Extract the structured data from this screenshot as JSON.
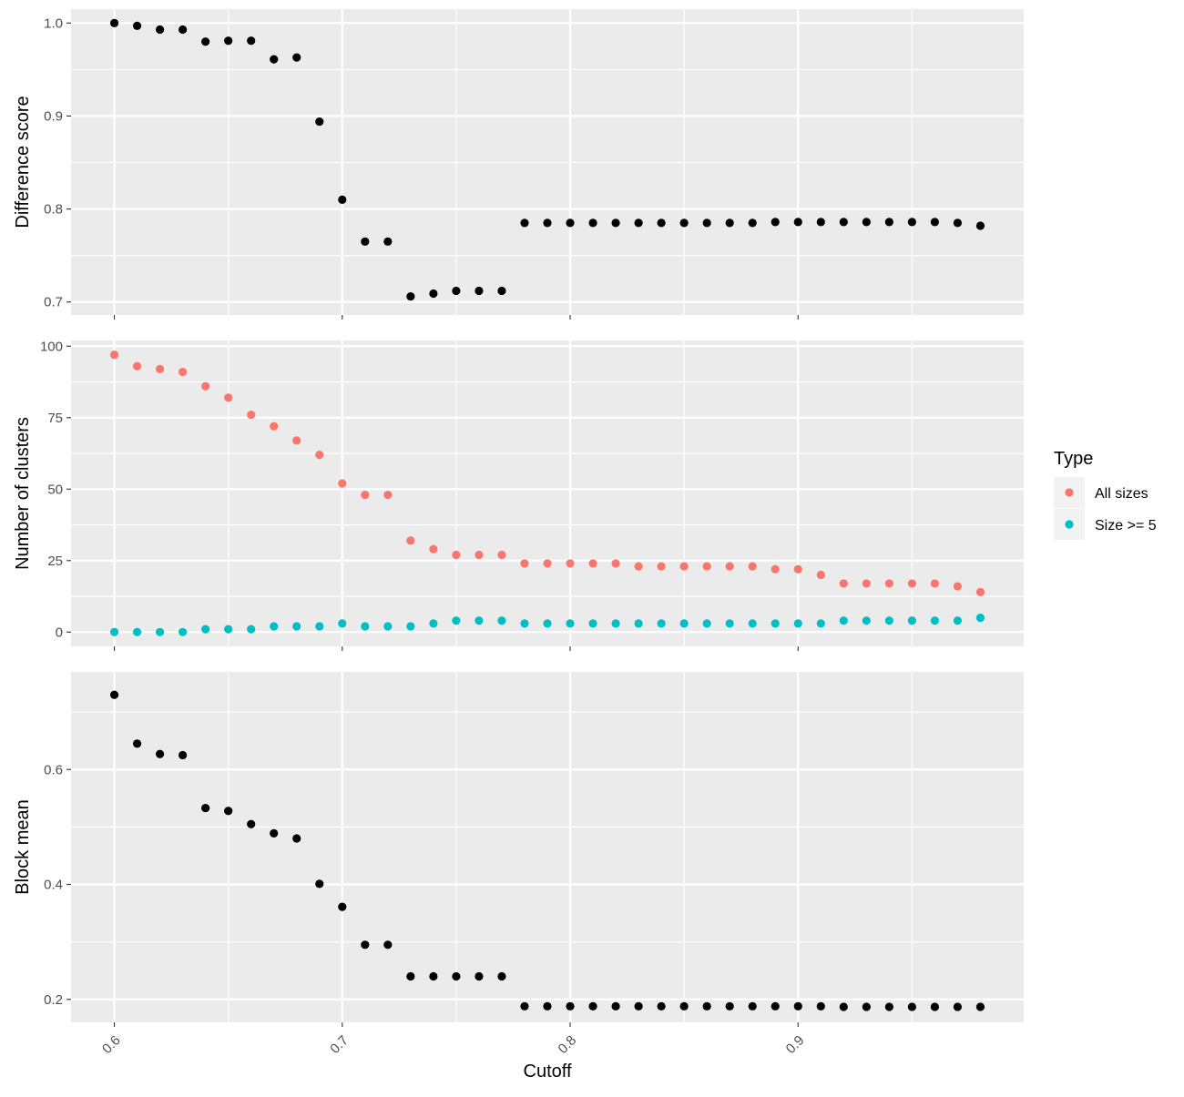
{
  "chart_data": {
    "type": "scatter",
    "x": [
      0.6,
      0.61,
      0.62,
      0.63,
      0.64,
      0.65,
      0.66,
      0.67,
      0.68,
      0.69,
      0.7,
      0.71,
      0.72,
      0.73,
      0.74,
      0.75,
      0.76,
      0.77,
      0.78,
      0.79,
      0.8,
      0.81,
      0.82,
      0.83,
      0.84,
      0.85,
      0.86,
      0.87,
      0.88,
      0.89,
      0.9,
      0.91,
      0.92,
      0.93,
      0.94,
      0.95,
      0.96,
      0.97,
      0.98
    ],
    "xlabel": "Cutoff",
    "xlim": [
      0.581,
      0.999
    ],
    "x_ticks": [
      0.6,
      0.7,
      0.8,
      0.9
    ],
    "x_tick_labels": [
      "0.6",
      "0.7",
      "0.8",
      "0.9"
    ],
    "grid": true,
    "legend_position": "right",
    "panels": [
      {
        "ylabel": "Difference score",
        "ylim": [
          0.686,
          1.015
        ],
        "y_ticks": [
          0.7,
          0.8,
          0.9,
          1.0
        ],
        "y_tick_labels": [
          "0.7",
          "0.8",
          "0.9",
          "1.0"
        ],
        "series": [
          {
            "color": "#000000",
            "values": [
              1.0,
              0.997,
              0.993,
              0.993,
              0.98,
              0.981,
              0.981,
              0.961,
              0.963,
              0.894,
              0.81,
              0.765,
              0.765,
              0.706,
              0.709,
              0.712,
              0.712,
              0.712,
              0.785,
              0.785,
              0.785,
              0.785,
              0.785,
              0.785,
              0.785,
              0.785,
              0.785,
              0.785,
              0.785,
              0.786,
              0.786,
              0.786,
              0.786,
              0.786,
              0.786,
              0.786,
              0.786,
              0.785,
              0.782
            ]
          }
        ]
      },
      {
        "ylabel": "Number of clusters",
        "ylim": [
          -5,
          102
        ],
        "y_ticks": [
          0,
          25,
          50,
          75,
          100
        ],
        "y_tick_labels": [
          "0",
          "25",
          "50",
          "75",
          "100"
        ],
        "series": [
          {
            "name": "All sizes",
            "color": "#F8766D",
            "values": [
              97,
              93,
              92,
              91,
              86,
              82,
              76,
              72,
              67,
              62,
              52,
              48,
              48,
              32,
              29,
              27,
              27,
              27,
              24,
              24,
              24,
              24,
              24,
              23,
              23,
              23,
              23,
              23,
              23,
              22,
              22,
              20,
              17,
              17,
              17,
              17,
              17,
              16,
              14
            ]
          },
          {
            "name": "Size >= 5",
            "color": "#00BFC4",
            "values": [
              0,
              0,
              0,
              0,
              1,
              1,
              1,
              2,
              2,
              2,
              3,
              2,
              2,
              2,
              3,
              4,
              4,
              4,
              3,
              3,
              3,
              3,
              3,
              3,
              3,
              3,
              3,
              3,
              3,
              3,
              3,
              3,
              4,
              4,
              4,
              4,
              4,
              4,
              5
            ]
          }
        ]
      },
      {
        "ylabel": "Block mean",
        "ylim": [
          0.16,
          0.77
        ],
        "y_ticks": [
          0.2,
          0.4,
          0.6
        ],
        "y_tick_labels": [
          "0.2",
          "0.4",
          "0.6"
        ],
        "series": [
          {
            "color": "#000000",
            "values": [
              0.73,
              0.645,
              0.627,
              0.625,
              0.533,
              0.528,
              0.505,
              0.489,
              0.48,
              0.401,
              0.361,
              0.295,
              0.295,
              0.24,
              0.24,
              0.24,
              0.24,
              0.24,
              0.188,
              0.188,
              0.188,
              0.188,
              0.188,
              0.188,
              0.188,
              0.188,
              0.188,
              0.188,
              0.188,
              0.188,
              0.188,
              0.188,
              0.187,
              0.187,
              0.187,
              0.187,
              0.187,
              0.187,
              0.187
            ]
          }
        ]
      }
    ],
    "legend": {
      "title": "Type",
      "entries": [
        {
          "label": "All sizes",
          "color": "#F8766D"
        },
        {
          "label": "Size >= 5",
          "color": "#00BFC4"
        }
      ]
    }
  }
}
